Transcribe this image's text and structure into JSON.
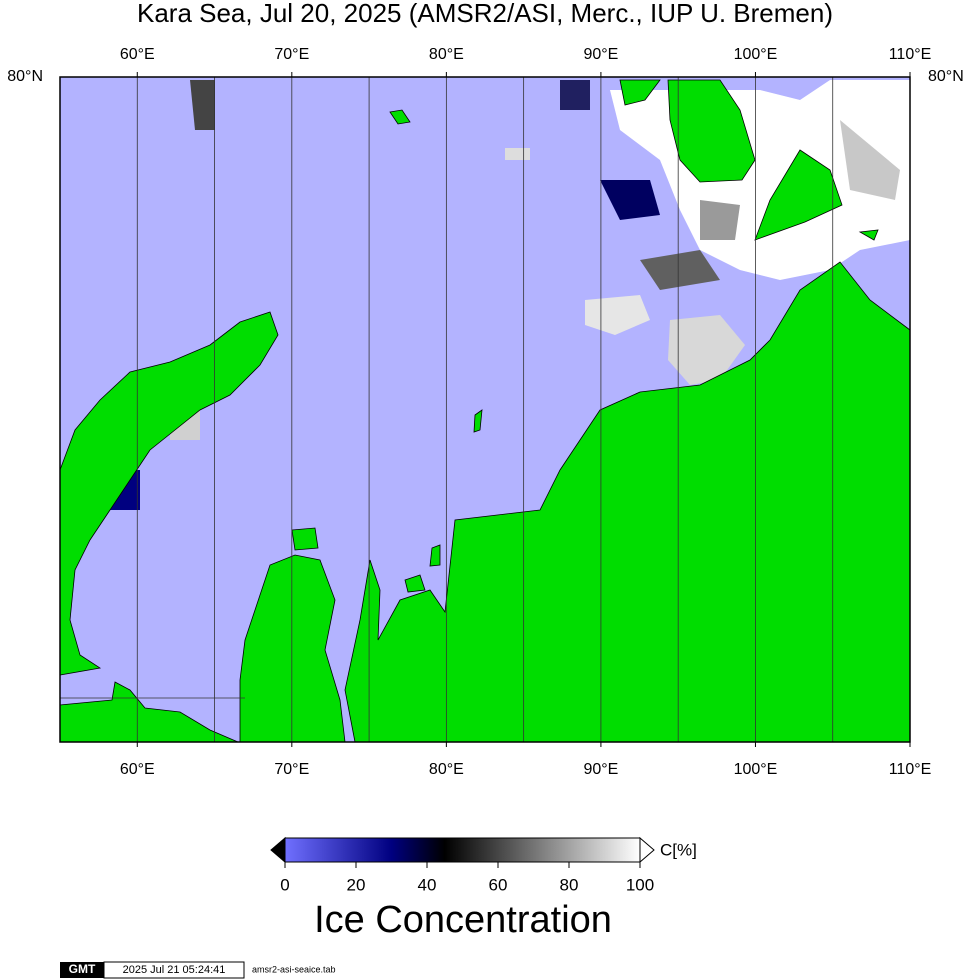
{
  "title": "Kara Sea, Jul 20, 2025 (AMSR2/ASI, Merc., IUP U. Bremen)",
  "map": {
    "lon_range": [
      55,
      110
    ],
    "lon_labels": [
      {
        "value": 60,
        "label": "60°E"
      },
      {
        "value": 70,
        "label": "70°E"
      },
      {
        "value": 80,
        "label": "80°E"
      },
      {
        "value": 90,
        "label": "90°E"
      },
      {
        "value": 100,
        "label": "100°E"
      },
      {
        "value": 110,
        "label": "110°E"
      }
    ],
    "meridians": [
      60,
      65,
      70,
      75,
      80,
      85,
      90,
      95,
      100,
      105
    ],
    "lat_label": "80°N"
  },
  "colorbar": {
    "title": "Ice Concentration",
    "unit": "C[%]",
    "range": [
      0,
      100
    ],
    "ticks": [
      0,
      20,
      40,
      60,
      80,
      100
    ]
  },
  "footer": {
    "logo": "GMT",
    "timestamp": "2025 Jul 21 05:24:41",
    "file": "amsr2-asi-seaice.tab"
  }
}
